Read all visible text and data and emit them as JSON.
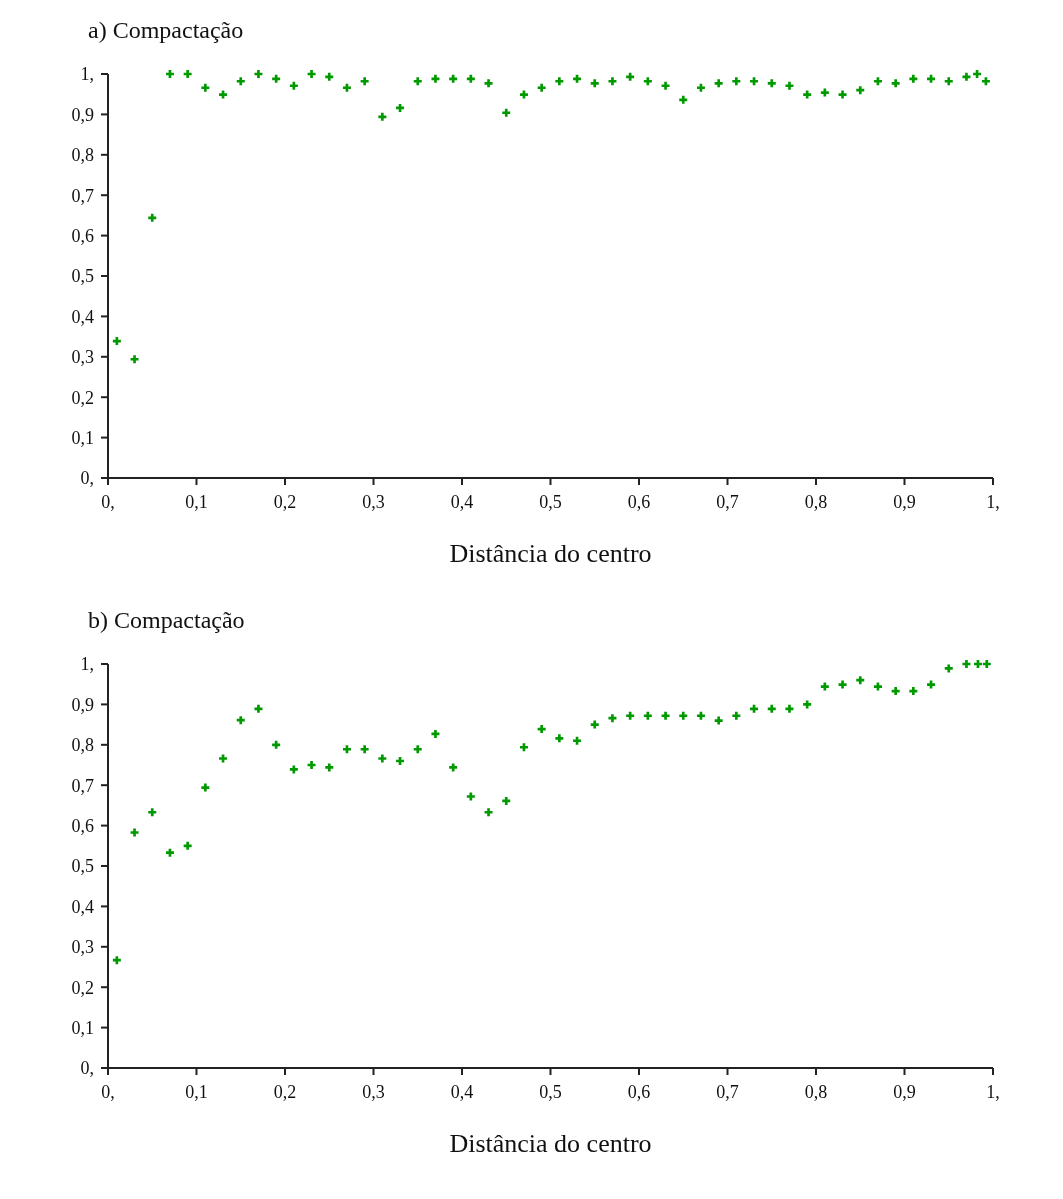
{
  "chart_data": [
    {
      "type": "scatter",
      "title": "a) Compactação",
      "xlabel": "Distância do centro",
      "marker": "cross",
      "grid": false,
      "xlim": [
        0,
        1
      ],
      "ylim": [
        0,
        1
      ],
      "xticks": [
        {
          "value": 0,
          "label": "0,"
        },
        {
          "value": 0.1,
          "label": "0,1"
        },
        {
          "value": 0.2,
          "label": "0,2"
        },
        {
          "value": 0.3,
          "label": "0,3"
        },
        {
          "value": 0.4,
          "label": "0,4"
        },
        {
          "value": 0.5,
          "label": "0,5"
        },
        {
          "value": 0.6,
          "label": "0,6"
        },
        {
          "value": 0.7,
          "label": "0,7"
        },
        {
          "value": 0.8,
          "label": "0,8"
        },
        {
          "value": 0.9,
          "label": "0,9"
        },
        {
          "value": 1,
          "label": "1,"
        }
      ],
      "yticks": [
        {
          "value": 0,
          "label": "0,"
        },
        {
          "value": 0.1,
          "label": "0,1"
        },
        {
          "value": 0.2,
          "label": "0,2"
        },
        {
          "value": 0.3,
          "label": "0,3"
        },
        {
          "value": 0.4,
          "label": "0,4"
        },
        {
          "value": 0.5,
          "label": "0,5"
        },
        {
          "value": 0.6,
          "label": "0,6"
        },
        {
          "value": 0.7,
          "label": "0,7"
        },
        {
          "value": 0.8,
          "label": "0,8"
        },
        {
          "value": 0.9,
          "label": "0,9"
        },
        {
          "value": 1,
          "label": "1,"
        }
      ],
      "series": [
        {
          "color": "#009900",
          "x": [
            0.01,
            0.03,
            0.05,
            0.07,
            0.09,
            0.11,
            0.13,
            0.15,
            0.17,
            0.19,
            0.21,
            0.23,
            0.25,
            0.27,
            0.29,
            0.31,
            0.33,
            0.35,
            0.37,
            0.39,
            0.41,
            0.43,
            0.45,
            0.47,
            0.49,
            0.51,
            0.53,
            0.55,
            0.57,
            0.59,
            0.61,
            0.63,
            0.65,
            0.67,
            0.69,
            0.71,
            0.73,
            0.75,
            0.77,
            0.79,
            0.81,
            0.83,
            0.85,
            0.87,
            0.89,
            0.91,
            0.93,
            0.95,
            0.97,
            0.982,
            0.992
          ],
          "values": [
            0.339,
            0.294,
            0.644,
            1.0,
            1.0,
            0.966,
            0.949,
            0.982,
            1.0,
            0.988,
            0.971,
            1.0,
            0.993,
            0.966,
            0.982,
            0.894,
            0.916,
            0.982,
            0.988,
            0.988,
            0.988,
            0.977,
            0.904,
            0.949,
            0.966,
            0.982,
            0.988,
            0.977,
            0.982,
            0.993,
            0.982,
            0.971,
            0.936,
            0.966,
            0.977,
            0.982,
            0.982,
            0.977,
            0.971,
            0.949,
            0.954,
            0.949,
            0.96,
            0.982,
            0.977,
            0.988,
            0.988,
            0.982,
            0.993,
            1.0,
            0.982
          ]
        }
      ]
    },
    {
      "type": "scatter",
      "title": "b) Compactação",
      "xlabel": "Distância do centro",
      "marker": "cross",
      "grid": false,
      "xlim": [
        0,
        1
      ],
      "ylim": [
        0,
        1
      ],
      "xticks": [
        {
          "value": 0,
          "label": "0,"
        },
        {
          "value": 0.1,
          "label": "0,1"
        },
        {
          "value": 0.2,
          "label": "0,2"
        },
        {
          "value": 0.3,
          "label": "0,3"
        },
        {
          "value": 0.4,
          "label": "0,4"
        },
        {
          "value": 0.5,
          "label": "0,5"
        },
        {
          "value": 0.6,
          "label": "0,6"
        },
        {
          "value": 0.7,
          "label": "0,7"
        },
        {
          "value": 0.8,
          "label": "0,8"
        },
        {
          "value": 0.9,
          "label": "0,9"
        },
        {
          "value": 1,
          "label": "1,"
        }
      ],
      "yticks": [
        {
          "value": 0,
          "label": "0,"
        },
        {
          "value": 0.1,
          "label": "0,1"
        },
        {
          "value": 0.2,
          "label": "0,2"
        },
        {
          "value": 0.3,
          "label": "0,3"
        },
        {
          "value": 0.4,
          "label": "0,4"
        },
        {
          "value": 0.5,
          "label": "0,5"
        },
        {
          "value": 0.6,
          "label": "0,6"
        },
        {
          "value": 0.7,
          "label": "0,7"
        },
        {
          "value": 0.8,
          "label": "0,8"
        },
        {
          "value": 0.9,
          "label": "0,9"
        },
        {
          "value": 1,
          "label": "1,"
        }
      ],
      "series": [
        {
          "color": "#009900",
          "x": [
            0.01,
            0.03,
            0.05,
            0.07,
            0.09,
            0.11,
            0.13,
            0.15,
            0.17,
            0.19,
            0.21,
            0.23,
            0.25,
            0.27,
            0.29,
            0.31,
            0.33,
            0.35,
            0.37,
            0.39,
            0.41,
            0.43,
            0.45,
            0.47,
            0.49,
            0.51,
            0.53,
            0.55,
            0.57,
            0.59,
            0.61,
            0.63,
            0.65,
            0.67,
            0.69,
            0.71,
            0.73,
            0.75,
            0.77,
            0.79,
            0.81,
            0.83,
            0.85,
            0.87,
            0.89,
            0.91,
            0.93,
            0.95,
            0.97,
            0.983,
            0.993
          ],
          "values": [
            0.267,
            0.583,
            0.633,
            0.533,
            0.55,
            0.694,
            0.766,
            0.861,
            0.889,
            0.8,
            0.739,
            0.75,
            0.744,
            0.789,
            0.789,
            0.766,
            0.76,
            0.789,
            0.827,
            0.744,
            0.672,
            0.633,
            0.661,
            0.794,
            0.839,
            0.816,
            0.81,
            0.85,
            0.866,
            0.872,
            0.872,
            0.872,
            0.872,
            0.872,
            0.86,
            0.872,
            0.889,
            0.889,
            0.889,
            0.9,
            0.944,
            0.949,
            0.96,
            0.944,
            0.933,
            0.933,
            0.949,
            0.989,
            1.0,
            1.0,
            1.0
          ]
        }
      ]
    }
  ]
}
